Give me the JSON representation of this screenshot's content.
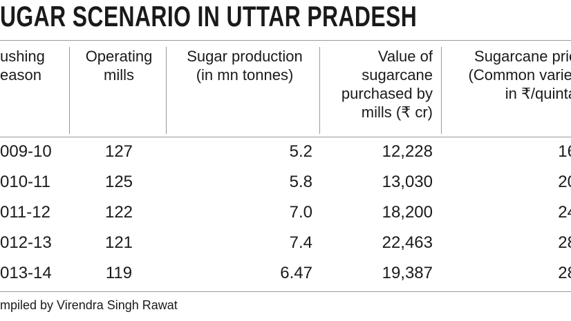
{
  "header": {
    "title": "UGAR SCENARIO IN UTTAR PRADESH"
  },
  "table": {
    "headers": [
      [
        "ushing",
        "eason"
      ],
      [
        "Operating",
        "mills"
      ],
      [
        "Sugar production",
        "(in mn tonnes)"
      ],
      [
        "Value of",
        "sugarcane",
        "purchased by",
        "mills (₹ cr)"
      ],
      [
        "Sugarcane pric",
        "(Common variet",
        "in ₹/quinta"
      ]
    ],
    "rows": [
      [
        "009-10",
        "127",
        "5.2",
        "12,228",
        "16"
      ],
      [
        "010-11",
        "125",
        "5.8",
        "13,030",
        "20"
      ],
      [
        "011-12",
        "122",
        "7.0",
        "18,200",
        "24"
      ],
      [
        "012-13",
        "121",
        "7.4",
        "22,463",
        "28"
      ],
      [
        "013-14",
        "119",
        "6.47",
        "19,387",
        "28"
      ]
    ]
  },
  "footer": {
    "credit": "mpiled by Virendra Singh Rawat"
  }
}
